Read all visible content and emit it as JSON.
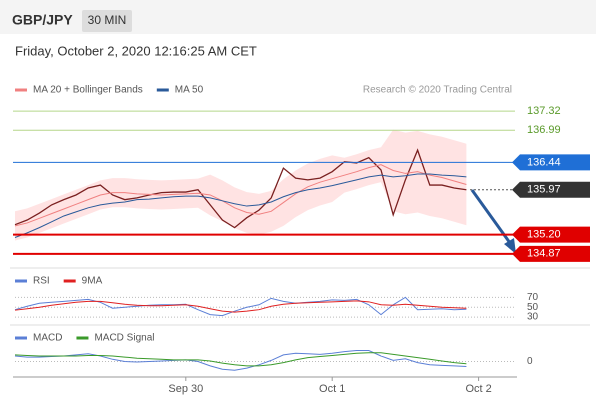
{
  "header": {
    "symbol": "GBP/JPY",
    "timeframe": "30 MIN",
    "date": "Friday, October 2, 2020 12:16:25 AM CET"
  },
  "chart_data": [
    {
      "type": "line",
      "attribution": "Research © 2020 Trading Central",
      "categories": [
        null,
        null,
        null,
        null,
        null,
        null,
        null,
        null,
        null,
        null,
        null,
        null,
        null,
        null,
        "Sep 30",
        null,
        null,
        null,
        null,
        null,
        null,
        null,
        null,
        null,
        null,
        null,
        "Oct 1",
        null,
        null,
        null,
        null,
        null,
        null,
        null,
        null,
        null,
        null,
        null,
        "Oct 2"
      ],
      "ylim": [
        134.73,
        137.51
      ],
      "price": {
        "color": "#7a2020",
        "values": [
          135.37,
          135.45,
          135.57,
          135.71,
          135.8,
          135.88,
          136.0,
          136.05,
          135.88,
          135.8,
          135.83,
          135.88,
          135.92,
          135.93,
          135.93,
          135.97,
          135.71,
          135.45,
          135.32,
          135.49,
          135.62,
          135.83,
          136.34,
          136.17,
          136.14,
          136.17,
          136.28,
          136.45,
          136.43,
          136.52,
          136.31,
          135.54,
          136.14,
          136.65,
          136.05,
          136.05,
          136.0,
          135.97,
          null
        ]
      },
      "series": [
        {
          "name": "MA 20 + Bollinger Bands",
          "color": "#f08080",
          "band_color": "#ffc8c8",
          "values": [
            135.35,
            135.4,
            135.48,
            135.56,
            135.64,
            135.72,
            135.8,
            135.88,
            135.92,
            135.92,
            135.9,
            135.89,
            135.88,
            135.89,
            135.9,
            135.91,
            135.88,
            135.78,
            135.66,
            135.58,
            135.55,
            135.6,
            135.75,
            135.9,
            136.02,
            136.1,
            136.16,
            136.22,
            136.28,
            136.35,
            136.4,
            136.3,
            136.25,
            136.28,
            136.22,
            136.18,
            136.12,
            136.06,
            null
          ],
          "upper": [
            135.6,
            135.65,
            135.73,
            135.81,
            135.89,
            135.97,
            136.05,
            136.13,
            136.17,
            136.17,
            136.15,
            136.14,
            136.13,
            136.14,
            136.15,
            136.16,
            136.23,
            136.13,
            136.01,
            135.93,
            135.9,
            135.95,
            136.15,
            136.3,
            136.42,
            136.5,
            136.56,
            136.52,
            136.58,
            136.65,
            136.7,
            137.0,
            136.95,
            136.98,
            136.92,
            136.88,
            136.82,
            136.76,
            null
          ],
          "lower": [
            135.1,
            135.15,
            135.23,
            135.31,
            135.39,
            135.47,
            135.55,
            135.63,
            135.67,
            135.67,
            135.65,
            135.64,
            135.63,
            135.64,
            135.65,
            135.66,
            135.53,
            135.43,
            135.31,
            135.23,
            135.2,
            135.25,
            135.35,
            135.5,
            135.62,
            135.7,
            135.76,
            135.92,
            135.98,
            136.05,
            136.1,
            135.6,
            135.55,
            135.58,
            135.52,
            135.48,
            135.42,
            135.36,
            null
          ]
        },
        {
          "name": "MA 50",
          "color": "#2a5a9a",
          "values": [
            135.15,
            135.23,
            135.32,
            135.42,
            135.52,
            135.59,
            135.66,
            135.71,
            135.74,
            135.76,
            135.8,
            135.81,
            135.83,
            135.85,
            135.86,
            135.86,
            135.83,
            135.78,
            135.73,
            135.69,
            135.71,
            135.76,
            135.85,
            135.92,
            135.97,
            136.0,
            136.04,
            136.09,
            136.14,
            136.19,
            136.22,
            136.19,
            136.21,
            136.24,
            136.24,
            136.22,
            136.21,
            136.19,
            null
          ]
        }
      ],
      "levels": [
        {
          "value": 137.32,
          "label": "137.32",
          "color": "#5a9a2a",
          "line": "#b5d68a",
          "box": false
        },
        {
          "value": 136.99,
          "label": "136.99",
          "color": "#5a9a2a",
          "line": "#b5d68a",
          "box": false
        },
        {
          "value": 136.44,
          "label": "136.44",
          "color": "#1f6fd6",
          "line": "#1f6fd6",
          "box": true
        },
        {
          "value": 135.97,
          "label": "135.97",
          "color": "#333333",
          "line": "#555555",
          "box": true
        },
        {
          "value": 135.2,
          "label": "135.20",
          "color": "#e00000",
          "line": "#e00000",
          "box": true
        },
        {
          "value": 134.87,
          "label": "134.87",
          "color": "#e00000",
          "line": "#e00000",
          "box": true
        }
      ]
    },
    {
      "type": "line",
      "ylim": [
        20,
        85
      ],
      "yticks": [
        70,
        50,
        30
      ],
      "series": [
        {
          "name": "RSI",
          "color": "#5b7fd6",
          "values": [
            45,
            52,
            58,
            60,
            62,
            64,
            66,
            60,
            48,
            50,
            52,
            54,
            55,
            55,
            56,
            45,
            35,
            33,
            42,
            50,
            55,
            68,
            62,
            58,
            60,
            62,
            65,
            64,
            66,
            55,
            35,
            55,
            70,
            45,
            46,
            47,
            45,
            46,
            null
          ]
        },
        {
          "name": "9MA",
          "color": "#e02020",
          "values": [
            44,
            47,
            50,
            54,
            57,
            60,
            62,
            62,
            59,
            56,
            54,
            53,
            53,
            54,
            55,
            52,
            47,
            42,
            40,
            42,
            45,
            52,
            56,
            58,
            59,
            60,
            61,
            62,
            63,
            61,
            55,
            54,
            56,
            54,
            52,
            50,
            49,
            48,
            null
          ]
        }
      ]
    },
    {
      "type": "line",
      "ylim": [
        -0.3,
        0.3
      ],
      "yticks": [
        0
      ],
      "series": [
        {
          "name": "MACD",
          "color": "#5b7fd6",
          "values": [
            0.1,
            0.08,
            0.08,
            0.09,
            0.1,
            0.12,
            0.14,
            0.1,
            0.04,
            0.0,
            -0.01,
            0.0,
            0.01,
            0.02,
            0.03,
            0.0,
            -0.08,
            -0.14,
            -0.16,
            -0.12,
            -0.06,
            0.02,
            0.12,
            0.15,
            0.14,
            0.13,
            0.15,
            0.18,
            0.2,
            0.2,
            0.1,
            0.02,
            0.05,
            -0.02,
            -0.06,
            -0.07,
            -0.08,
            -0.09,
            null
          ]
        },
        {
          "name": "MACD Signal",
          "color": "#3a9a2a",
          "values": [
            0.12,
            0.11,
            0.1,
            0.1,
            0.1,
            0.1,
            0.11,
            0.11,
            0.1,
            0.08,
            0.06,
            0.05,
            0.04,
            0.03,
            0.03,
            0.03,
            0.01,
            -0.03,
            -0.06,
            -0.08,
            -0.08,
            -0.06,
            -0.02,
            0.03,
            0.07,
            0.09,
            0.11,
            0.13,
            0.15,
            0.16,
            0.16,
            0.13,
            0.1,
            0.07,
            0.04,
            0.01,
            -0.02,
            -0.04,
            null
          ]
        }
      ]
    }
  ]
}
